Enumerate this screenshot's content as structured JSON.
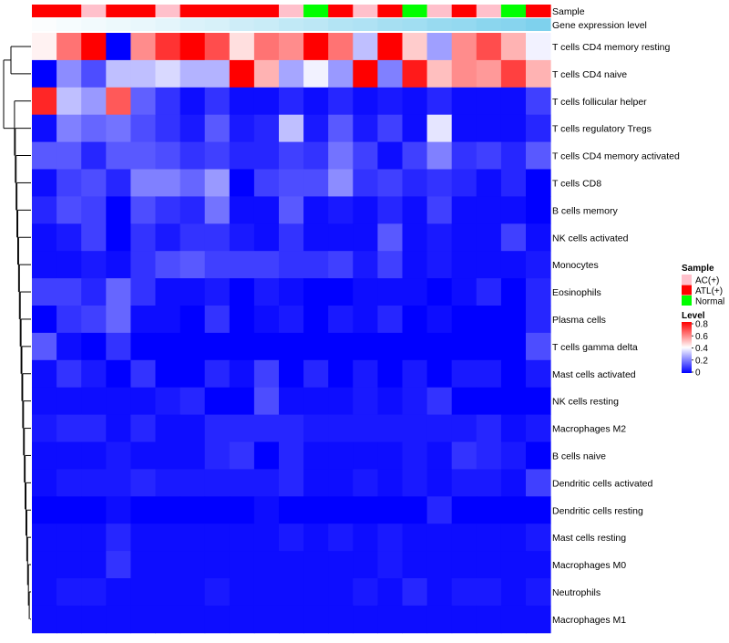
{
  "chart_data": {
    "type": "heatmap",
    "title": "",
    "annotation_tracks": [
      {
        "name": "Sample",
        "label": "Sample"
      },
      {
        "name": "Gene expression level",
        "label": "Gene expression level"
      }
    ],
    "sample_groups": [
      "ATL(+)",
      "ATL(+)",
      "AC(+)",
      "ATL(+)",
      "ATL(+)",
      "AC(+)",
      "ATL(+)",
      "ATL(+)",
      "ATL(+)",
      "ATL(+)",
      "AC(+)",
      "Normal",
      "ATL(+)",
      "AC(+)",
      "ATL(+)",
      "Normal",
      "AC(+)",
      "ATL(+)",
      "AC(+)",
      "Normal",
      "ATL(+)"
    ],
    "expression_track": [
      0.05,
      0.08,
      0.11,
      0.14,
      0.17,
      0.21,
      0.26,
      0.31,
      0.36,
      0.41,
      0.46,
      0.51,
      0.56,
      0.61,
      0.66,
      0.71,
      0.76,
      0.81,
      0.86,
      0.91,
      0.96
    ],
    "rows": [
      {
        "label": "T cells CD4 memory resting",
        "values": [
          0.42,
          0.62,
          0.8,
          0.0,
          0.58,
          0.72,
          0.8,
          0.68,
          0.45,
          0.62,
          0.58,
          0.8,
          0.62,
          0.3,
          0.8,
          0.48,
          0.25,
          0.58,
          0.68,
          0.52,
          0.38
        ]
      },
      {
        "label": "T cells CD4 naive",
        "values": [
          0.0,
          0.22,
          0.12,
          0.3,
          0.3,
          0.34,
          0.28,
          0.28,
          0.8,
          0.52,
          0.26,
          0.38,
          0.24,
          0.8,
          0.2,
          0.76,
          0.5,
          0.58,
          0.56,
          0.7,
          0.52
        ]
      },
      {
        "label": "T cells follicular helper",
        "values": [
          0.74,
          0.3,
          0.24,
          0.66,
          0.15,
          0.08,
          0.02,
          0.08,
          0.02,
          0.02,
          0.06,
          0.02,
          0.06,
          0.02,
          0.04,
          0.02,
          0.06,
          0.02,
          0.02,
          0.02,
          0.1
        ]
      },
      {
        "label": "T cells regulatory  Tregs",
        "values": [
          0.02,
          0.2,
          0.16,
          0.18,
          0.12,
          0.08,
          0.04,
          0.14,
          0.04,
          0.06,
          0.3,
          0.04,
          0.14,
          0.04,
          0.1,
          0.02,
          0.36,
          0.02,
          0.02,
          0.02,
          0.06
        ]
      },
      {
        "label": "T cells CD4 memory activated",
        "values": [
          0.14,
          0.14,
          0.06,
          0.14,
          0.14,
          0.12,
          0.08,
          0.1,
          0.06,
          0.06,
          0.1,
          0.08,
          0.18,
          0.1,
          0.02,
          0.1,
          0.2,
          0.08,
          0.1,
          0.06,
          0.14
        ]
      },
      {
        "label": "T cells CD8",
        "values": [
          0.02,
          0.1,
          0.12,
          0.06,
          0.2,
          0.2,
          0.16,
          0.24,
          0.0,
          0.1,
          0.12,
          0.12,
          0.22,
          0.08,
          0.1,
          0.06,
          0.08,
          0.06,
          0.02,
          0.06,
          0.0
        ]
      },
      {
        "label": "B cells memory",
        "values": [
          0.06,
          0.12,
          0.1,
          0.0,
          0.12,
          0.08,
          0.06,
          0.18,
          0.02,
          0.02,
          0.14,
          0.02,
          0.04,
          0.02,
          0.06,
          0.02,
          0.1,
          0.02,
          0.02,
          0.02,
          0.0
        ]
      },
      {
        "label": "NK cells activated",
        "values": [
          0.02,
          0.04,
          0.1,
          0.0,
          0.08,
          0.04,
          0.08,
          0.08,
          0.04,
          0.02,
          0.08,
          0.02,
          0.02,
          0.02,
          0.14,
          0.02,
          0.04,
          0.02,
          0.02,
          0.1,
          0.02
        ]
      },
      {
        "label": "Monocytes",
        "values": [
          0.02,
          0.02,
          0.04,
          0.02,
          0.08,
          0.12,
          0.14,
          0.1,
          0.1,
          0.1,
          0.08,
          0.08,
          0.1,
          0.04,
          0.1,
          0.02,
          0.04,
          0.02,
          0.02,
          0.02,
          0.04
        ]
      },
      {
        "label": "Eosinophils",
        "values": [
          0.1,
          0.1,
          0.06,
          0.16,
          0.08,
          0.02,
          0.02,
          0.04,
          0.0,
          0.04,
          0.02,
          0.0,
          0.0,
          0.02,
          0.02,
          0.02,
          0.0,
          0.02,
          0.06,
          0.0,
          0.06
        ]
      },
      {
        "label": "Plasma cells",
        "values": [
          0.0,
          0.08,
          0.1,
          0.16,
          0.02,
          0.02,
          0.0,
          0.08,
          0.0,
          0.02,
          0.04,
          0.0,
          0.04,
          0.02,
          0.06,
          0.0,
          0.02,
          0.0,
          0.0,
          0.0,
          0.06
        ]
      },
      {
        "label": "T cells gamma delta",
        "values": [
          0.14,
          0.02,
          0.0,
          0.08,
          0.0,
          0.0,
          0.0,
          0.0,
          0.0,
          0.0,
          0.0,
          0.0,
          0.0,
          0.0,
          0.0,
          0.0,
          0.0,
          0.0,
          0.0,
          0.0,
          0.12
        ]
      },
      {
        "label": "Mast cells activated",
        "values": [
          0.02,
          0.08,
          0.04,
          0.0,
          0.08,
          0.0,
          0.0,
          0.06,
          0.02,
          0.1,
          0.0,
          0.06,
          0.0,
          0.04,
          0.0,
          0.04,
          0.0,
          0.04,
          0.04,
          0.0,
          0.04
        ]
      },
      {
        "label": "NK cells resting",
        "values": [
          0.02,
          0.02,
          0.02,
          0.02,
          0.02,
          0.04,
          0.06,
          0.0,
          0.0,
          0.12,
          0.02,
          0.02,
          0.02,
          0.04,
          0.02,
          0.04,
          0.08,
          0.0,
          0.0,
          0.0,
          0.0
        ]
      },
      {
        "label": "Macrophages M2",
        "values": [
          0.04,
          0.06,
          0.06,
          0.02,
          0.06,
          0.02,
          0.02,
          0.06,
          0.06,
          0.06,
          0.06,
          0.04,
          0.04,
          0.04,
          0.04,
          0.04,
          0.04,
          0.04,
          0.06,
          0.02,
          0.04
        ]
      },
      {
        "label": "B cells naive",
        "values": [
          0.02,
          0.02,
          0.02,
          0.04,
          0.02,
          0.02,
          0.02,
          0.06,
          0.08,
          0.0,
          0.06,
          0.02,
          0.02,
          0.02,
          0.02,
          0.04,
          0.02,
          0.08,
          0.06,
          0.04,
          0.0
        ]
      },
      {
        "label": "Dendritic cells activated",
        "values": [
          0.02,
          0.04,
          0.04,
          0.04,
          0.06,
          0.04,
          0.04,
          0.04,
          0.04,
          0.04,
          0.06,
          0.02,
          0.02,
          0.04,
          0.02,
          0.04,
          0.02,
          0.04,
          0.04,
          0.02,
          0.1
        ]
      },
      {
        "label": "Dendritic cells resting",
        "values": [
          0.0,
          0.0,
          0.0,
          0.02,
          0.0,
          0.0,
          0.0,
          0.0,
          0.0,
          0.02,
          0.0,
          0.0,
          0.0,
          0.0,
          0.0,
          0.0,
          0.06,
          0.0,
          0.0,
          0.0,
          0.0
        ]
      },
      {
        "label": "Mast cells resting",
        "values": [
          0.02,
          0.02,
          0.02,
          0.06,
          0.02,
          0.02,
          0.02,
          0.02,
          0.02,
          0.02,
          0.04,
          0.02,
          0.04,
          0.02,
          0.04,
          0.02,
          0.02,
          0.02,
          0.02,
          0.02,
          0.04
        ]
      },
      {
        "label": "Macrophages M0",
        "values": [
          0.02,
          0.02,
          0.02,
          0.08,
          0.02,
          0.02,
          0.02,
          0.02,
          0.02,
          0.02,
          0.02,
          0.02,
          0.02,
          0.02,
          0.04,
          0.02,
          0.02,
          0.02,
          0.02,
          0.02,
          0.02
        ]
      },
      {
        "label": "Neutrophils",
        "values": [
          0.02,
          0.04,
          0.04,
          0.02,
          0.02,
          0.02,
          0.02,
          0.04,
          0.02,
          0.02,
          0.02,
          0.02,
          0.02,
          0.04,
          0.02,
          0.06,
          0.02,
          0.04,
          0.04,
          0.02,
          0.04
        ]
      },
      {
        "label": "Macrophages M1",
        "values": [
          0.02,
          0.02,
          0.02,
          0.02,
          0.02,
          0.02,
          0.02,
          0.02,
          0.02,
          0.02,
          0.02,
          0.02,
          0.02,
          0.02,
          0.02,
          0.02,
          0.02,
          0.02,
          0.02,
          0.02,
          0.02
        ]
      }
    ],
    "dendrogram_clusters": [
      {
        "members": [
          "T cells CD4 memory resting",
          "T cells CD4 naive"
        ]
      },
      {
        "members": [
          "T cells follicular helper",
          "T cells regulatory  Tregs",
          "T cells CD4 memory activated",
          "T cells CD8",
          "B cells memory",
          "NK cells activated",
          "Monocytes",
          "Eosinophils",
          "Plasma cells",
          "T cells gamma delta",
          "Mast cells activated",
          "NK cells resting",
          "Macrophages M2",
          "B cells naive",
          "Dendritic cells activated",
          "Dendritic cells resting",
          "Mast cells resting",
          "Macrophages M0",
          "Neutrophils",
          "Macrophages M1"
        ]
      }
    ],
    "legend_sample": {
      "title": "Sample",
      "items": [
        {
          "label": "AC(+)",
          "color": "#FFC0CB"
        },
        {
          "label": "ATL(+)",
          "color": "#FF0000"
        },
        {
          "label": "Normal",
          "color": "#00FF00"
        }
      ]
    },
    "legend_level": {
      "title": "Level",
      "range": [
        0,
        0.8
      ],
      "ticks": [
        "0.8",
        "0.6",
        "0.4",
        "0.2",
        "0"
      ],
      "colors": {
        "low": "#0000FF",
        "mid": "#FFFFFF",
        "high": "#FF0000"
      }
    }
  }
}
